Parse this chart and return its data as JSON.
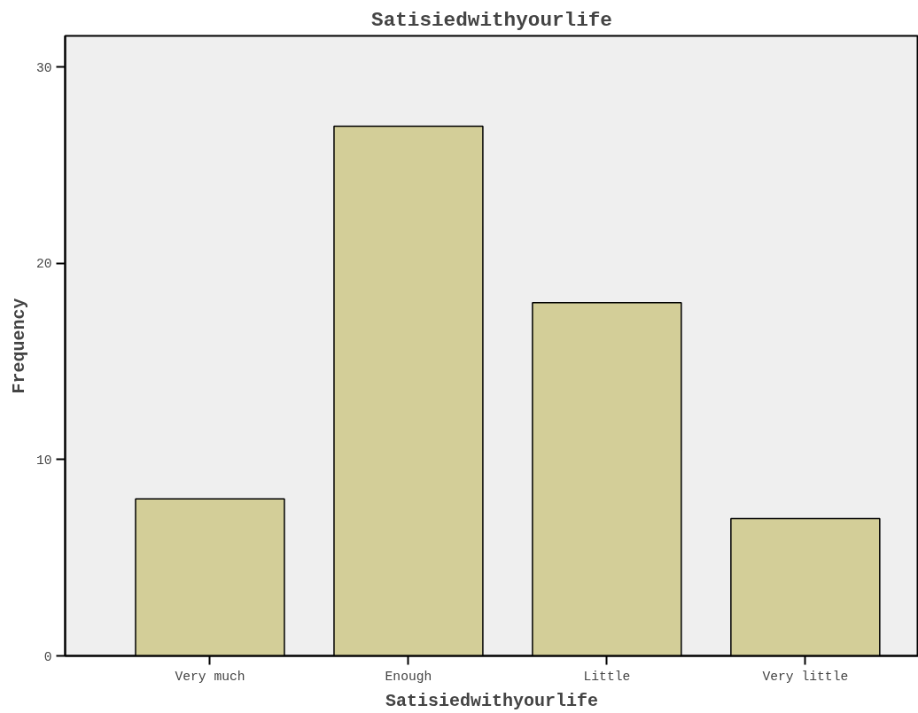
{
  "chart_data": {
    "type": "bar",
    "title": "Satisiedwithyourlife",
    "xlabel": "Satisiedwithyourlife",
    "ylabel": "Frequency",
    "categories": [
      "Very much",
      "Enough",
      "Little",
      "Very little"
    ],
    "values": [
      8,
      27,
      18,
      7
    ],
    "color": "#d3ce98",
    "ylim": [
      0,
      31.6
    ],
    "yticks": [
      0,
      10,
      20,
      30
    ],
    "grid": false
  }
}
